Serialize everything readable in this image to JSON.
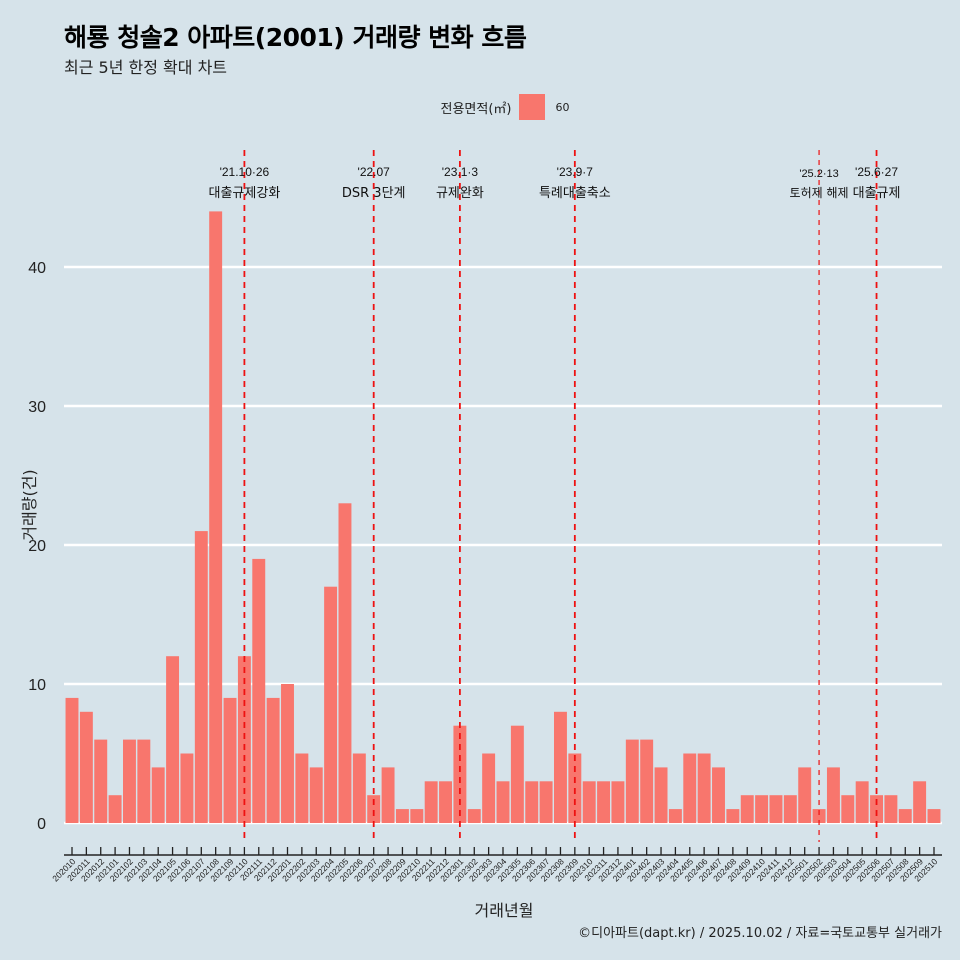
{
  "header": {
    "title": "해룡 청솔2 아파트(2001) 거래량 변화 흐름",
    "subtitle": "최근 5년 한정 확대 차트"
  },
  "legend": {
    "title": "전용면적(㎡)",
    "items": [
      {
        "label": "60",
        "color": "#f8766d"
      }
    ]
  },
  "caption": "©디아파트(dapt.kr) / 2025.10.02 / 자료=국토교통부 실거래가",
  "chart_data": {
    "type": "bar",
    "title": "해룡 청솔2 아파트(2001) 거래량 변화 흐름",
    "subtitle": "최근 5년 한정 확대 차트",
    "xlabel": "거래년월",
    "ylabel": "거래량(건)",
    "ylim": [
      0,
      46
    ],
    "yticks": [
      0,
      10,
      20,
      30,
      40
    ],
    "grid": true,
    "legend_position": "top",
    "categories": [
      "202010",
      "202011",
      "202012",
      "202101",
      "202102",
      "202103",
      "202104",
      "202105",
      "202106",
      "202107",
      "202108",
      "202109",
      "202110",
      "202111",
      "202112",
      "202201",
      "202202",
      "202203",
      "202204",
      "202205",
      "202206",
      "202207",
      "202208",
      "202209",
      "202210",
      "202211",
      "202212",
      "202301",
      "202302",
      "202303",
      "202304",
      "202305",
      "202306",
      "202307",
      "202308",
      "202309",
      "202310",
      "202311",
      "202312",
      "202401",
      "202402",
      "202403",
      "202404",
      "202405",
      "202406",
      "202407",
      "202408",
      "202409",
      "202410",
      "202411",
      "202412",
      "202501",
      "202502",
      "202503",
      "202504",
      "202505",
      "202506",
      "202507",
      "202508",
      "202509",
      "202510"
    ],
    "series": [
      {
        "name": "60",
        "color": "#f8766d",
        "values": [
          9,
          8,
          6,
          2,
          6,
          6,
          4,
          12,
          5,
          21,
          44,
          9,
          12,
          19,
          9,
          10,
          5,
          4,
          17,
          23,
          5,
          2,
          4,
          1,
          1,
          3,
          3,
          7,
          1,
          5,
          3,
          7,
          3,
          3,
          8,
          5,
          3,
          3,
          3,
          6,
          6,
          4,
          1,
          5,
          5,
          4,
          1,
          2,
          2,
          2,
          2,
          4,
          1,
          4,
          2,
          3,
          2,
          2,
          1,
          3,
          1
        ]
      }
    ],
    "annotations": [
      {
        "date_label": "'21.10·26",
        "text": "대출규제강화",
        "x": "202110",
        "style": "major"
      },
      {
        "date_label": "'22.07",
        "text": "DSR 3단계",
        "x": "202207",
        "style": "major"
      },
      {
        "date_label": "'23.1·3",
        "text": "규제완화",
        "x": "202301",
        "style": "major"
      },
      {
        "date_label": "'23.9·7",
        "text": "특례대출축소",
        "x": "202309",
        "style": "major"
      },
      {
        "date_label": "'25.2·13",
        "text": "토허제 해제",
        "x": "202502",
        "style": "minor"
      },
      {
        "date_label": "'25.6·27",
        "text": "대출규제",
        "x": "202506",
        "style": "major"
      }
    ]
  }
}
